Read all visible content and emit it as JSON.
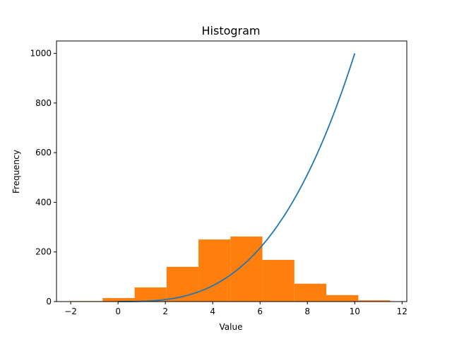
{
  "chart_data": {
    "type": "bar",
    "title": "Histogram",
    "xlabel": "Value",
    "ylabel": "Frequency",
    "xlim": [
      -2.6,
      12.2
    ],
    "ylim": [
      0,
      1050
    ],
    "xticks": [
      -2,
      0,
      2,
      4,
      6,
      8,
      10,
      12
    ],
    "yticks": [
      0,
      200,
      400,
      600,
      800,
      1000
    ],
    "grid": false,
    "histogram": {
      "color": "#ff7f0e",
      "bin_edges": [
        -2.0,
        -0.65,
        0.7,
        2.05,
        3.4,
        4.75,
        6.1,
        7.45,
        8.8,
        10.15,
        11.5
      ],
      "counts": [
        2,
        14,
        57,
        140,
        250,
        262,
        168,
        72,
        26,
        5
      ]
    },
    "curve": {
      "color": "#1f77b4",
      "type": "line",
      "x_range": [
        0,
        10
      ],
      "x": [
        0,
        1,
        2,
        3,
        4,
        5,
        6,
        7,
        8,
        9,
        10
      ],
      "y": [
        0,
        1,
        8,
        27,
        64,
        125,
        216,
        343,
        512,
        729,
        1000
      ]
    }
  }
}
